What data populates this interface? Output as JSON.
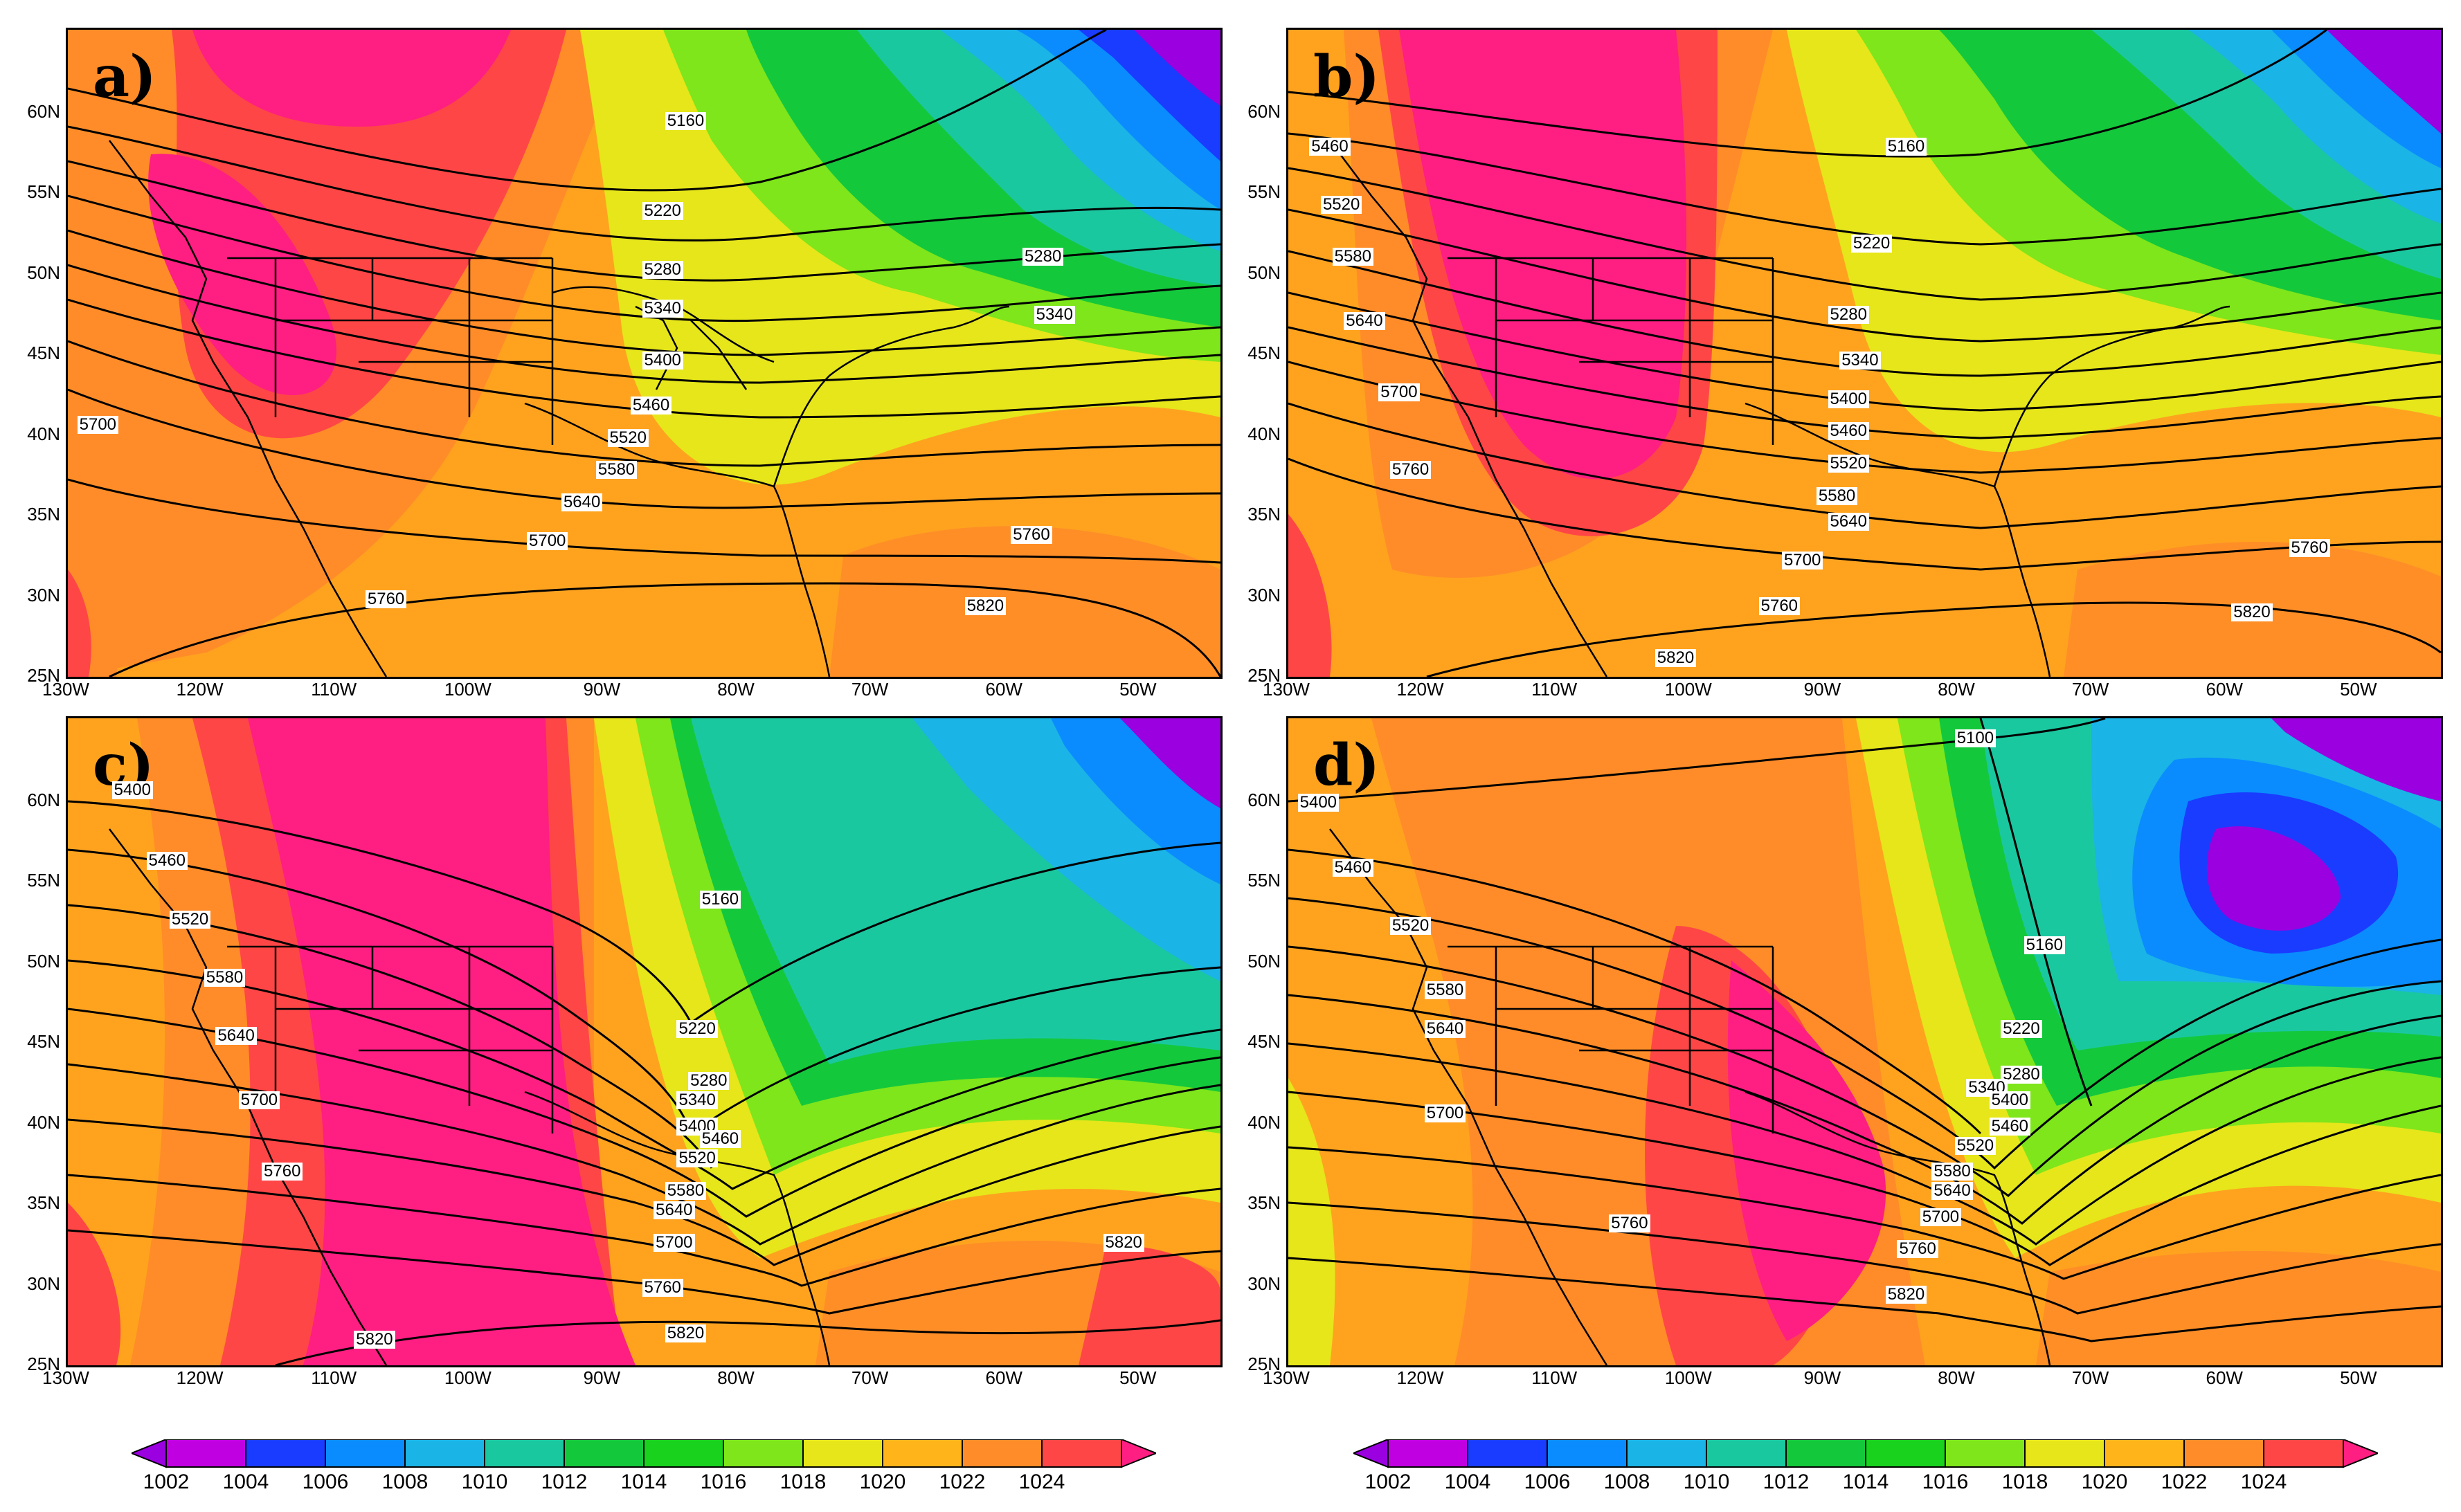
{
  "colorbar": {
    "levels": [
      "1002",
      "1004",
      "1006",
      "1008",
      "1010",
      "1012",
      "1014",
      "1016",
      "1018",
      "1020",
      "1022",
      "1024"
    ],
    "colors": [
      "#9a00e0",
      "#c000e0",
      "#1a3cff",
      "#0a8cff",
      "#1ab4e6",
      "#1ac8a0",
      "#14c83c",
      "#18d21e",
      "#7ee61a",
      "#e6e61a",
      "#ffb41a",
      "#ff8c28",
      "#ff4646",
      "#ff1e82"
    ]
  },
  "lat_labels": [
    "60N",
    "55N",
    "50N",
    "45N",
    "40N",
    "35N",
    "30N",
    "25N"
  ],
  "lon_labels": [
    "130W",
    "120W",
    "110W",
    "100W",
    "90W",
    "80W",
    "70W",
    "60W",
    "50W"
  ],
  "panels": [
    {
      "letter": "a)",
      "contour_labels": [
        "5160",
        "5220",
        "5280",
        "5280",
        "5340",
        "5340",
        "5400",
        "5460",
        "5520",
        "5580",
        "5640",
        "5700",
        "5700",
        "5760",
        "5760",
        "5820"
      ]
    },
    {
      "letter": "b)",
      "contour_labels": [
        "5460",
        "5520",
        "5580",
        "5640",
        "5700",
        "5760",
        "5160",
        "5220",
        "5280",
        "5340",
        "5400",
        "5460",
        "5520",
        "5580",
        "5640",
        "5700",
        "5760",
        "5760",
        "5820",
        "5820"
      ]
    },
    {
      "letter": "c)",
      "contour_labels": [
        "5400",
        "5460",
        "5520",
        "5580",
        "5640",
        "5700",
        "5760",
        "5820",
        "5160",
        "5220",
        "5280",
        "5340",
        "5400",
        "5460",
        "5520",
        "5580",
        "5640",
        "5700",
        "5760",
        "5820",
        "5820"
      ]
    },
    {
      "letter": "d)",
      "contour_labels": [
        "5100",
        "5400",
        "5460",
        "5520",
        "5580",
        "5640",
        "5700",
        "5760",
        "5160",
        "5220",
        "5280",
        "5340",
        "5400",
        "5460",
        "5520",
        "5580",
        "5640",
        "5700",
        "5760",
        "5820"
      ]
    }
  ]
}
